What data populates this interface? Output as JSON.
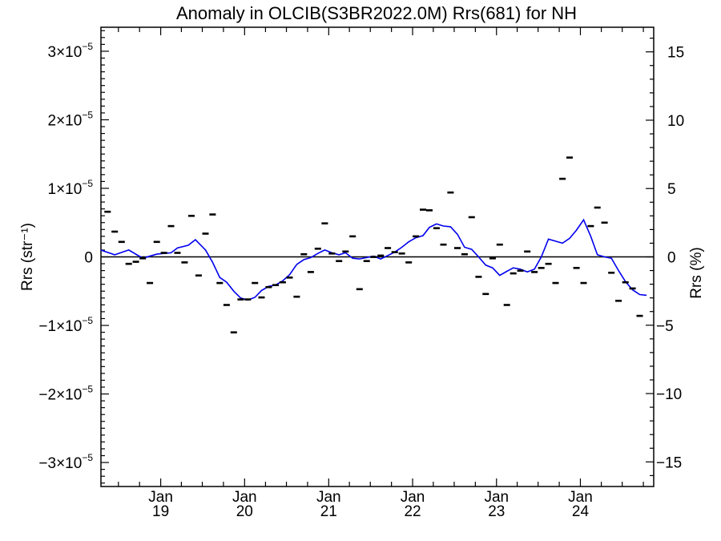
{
  "chart_data": {
    "type": "scatter",
    "title": "Anomaly in OLCIB(S3BR2022.0M) Rrs(681) for NH",
    "ylabel_left": "Rrs (str⁻¹)",
    "ylabel_right": "Rrs (%)",
    "x_range": [
      "2018-04-16",
      "2024-11-15"
    ],
    "ylim_left": [
      -3.35e-05,
      3.35e-05
    ],
    "ylim_right": [
      -16.8,
      16.8
    ],
    "left_ticks": [
      {
        "value": 3e-05,
        "mantissa": "3",
        "sign": ""
      },
      {
        "value": 2e-05,
        "mantissa": "2",
        "sign": ""
      },
      {
        "value": 1e-05,
        "mantissa": "1",
        "sign": ""
      },
      {
        "value": 0,
        "plain": "0"
      },
      {
        "value": -1e-05,
        "mantissa": "1",
        "sign": "−"
      },
      {
        "value": -2e-05,
        "mantissa": "2",
        "sign": "−"
      },
      {
        "value": -3e-05,
        "mantissa": "3",
        "sign": "−"
      }
    ],
    "tick_times": "×10",
    "tick_exp": "−5",
    "right_ticks": [
      {
        "value": 15,
        "label": "15"
      },
      {
        "value": 10,
        "label": "10"
      },
      {
        "value": 5,
        "label": "5"
      },
      {
        "value": 0,
        "label": "0"
      },
      {
        "value": -5,
        "label": "−5"
      },
      {
        "value": -10,
        "label": "−10"
      },
      {
        "value": -15,
        "label": "−15"
      }
    ],
    "x_ticks": [
      {
        "date": "2019-01-01",
        "month": "Jan",
        "year": "19"
      },
      {
        "date": "2020-01-01",
        "month": "Jan",
        "year": "20"
      },
      {
        "date": "2021-01-01",
        "month": "Jan",
        "year": "21"
      },
      {
        "date": "2022-01-01",
        "month": "Jan",
        "year": "22"
      },
      {
        "date": "2023-01-01",
        "month": "Jan",
        "year": "23"
      },
      {
        "date": "2024-01-01",
        "month": "Jan",
        "year": "24"
      }
    ],
    "series": [
      {
        "kind": "monthly_anomaly_markers",
        "color": "#000000",
        "points": [
          [
            "2018-05-15",
            6.6e-06
          ],
          [
            "2018-06-15",
            3.7e-06
          ],
          [
            "2018-07-15",
            2.2e-06
          ],
          [
            "2018-08-15",
            -1e-06
          ],
          [
            "2018-09-15",
            -7e-07
          ],
          [
            "2018-10-15",
            -2e-07
          ],
          [
            "2018-11-15",
            -3.8e-06
          ],
          [
            "2018-12-15",
            2.2e-06
          ],
          [
            "2019-01-15",
            6e-07
          ],
          [
            "2019-02-15",
            4.5e-06
          ],
          [
            "2019-03-15",
            6e-07
          ],
          [
            "2019-04-15",
            -8e-07
          ],
          [
            "2019-05-15",
            6e-06
          ],
          [
            "2019-06-15",
            -2.7e-06
          ],
          [
            "2019-07-15",
            3.4e-06
          ],
          [
            "2019-08-15",
            6.2e-06
          ],
          [
            "2019-09-15",
            -3.8e-06
          ],
          [
            "2019-10-15",
            -7e-06
          ],
          [
            "2019-11-15",
            -1.1e-05
          ],
          [
            "2019-12-15",
            -6.2e-06
          ],
          [
            "2020-01-15",
            -6.2e-06
          ],
          [
            "2020-02-15",
            -3.8e-06
          ],
          [
            "2020-03-15",
            -5.9e-06
          ],
          [
            "2020-04-15",
            -4.4e-06
          ],
          [
            "2020-05-15",
            -4.1e-06
          ],
          [
            "2020-06-15",
            -3.7e-06
          ],
          [
            "2020-07-15",
            -3e-06
          ],
          [
            "2020-08-15",
            -5.8e-06
          ],
          [
            "2020-09-15",
            4e-07
          ],
          [
            "2020-10-15",
            -2.2e-06
          ],
          [
            "2020-11-15",
            1.2e-06
          ],
          [
            "2020-12-15",
            4.9e-06
          ],
          [
            "2021-01-15",
            5e-07
          ],
          [
            "2021-02-15",
            -6e-07
          ],
          [
            "2021-03-15",
            8e-07
          ],
          [
            "2021-04-15",
            3e-06
          ],
          [
            "2021-05-15",
            -4.7e-06
          ],
          [
            "2021-06-15",
            -6e-07
          ],
          [
            "2021-07-15",
            0.0
          ],
          [
            "2021-08-15",
            2e-07
          ],
          [
            "2021-09-15",
            1.3e-06
          ],
          [
            "2021-10-15",
            7e-07
          ],
          [
            "2021-11-15",
            5e-07
          ],
          [
            "2021-12-15",
            -8e-07
          ],
          [
            "2022-01-15",
            3e-06
          ],
          [
            "2022-02-15",
            6.9e-06
          ],
          [
            "2022-03-15",
            6.8e-06
          ],
          [
            "2022-04-15",
            4.2e-06
          ],
          [
            "2022-05-15",
            1.8e-06
          ],
          [
            "2022-06-15",
            9.4e-06
          ],
          [
            "2022-07-15",
            1.3e-06
          ],
          [
            "2022-08-15",
            4e-07
          ],
          [
            "2022-09-15",
            5.8e-06
          ],
          [
            "2022-10-15",
            -2.9e-06
          ],
          [
            "2022-11-15",
            -5.4e-06
          ],
          [
            "2022-12-15",
            -2e-07
          ],
          [
            "2023-01-15",
            1.8e-06
          ],
          [
            "2023-02-15",
            -7e-06
          ],
          [
            "2023-03-15",
            -2.4e-06
          ],
          [
            "2023-04-15",
            -2e-06
          ],
          [
            "2023-05-15",
            8e-07
          ],
          [
            "2023-06-15",
            -2.2e-06
          ],
          [
            "2023-07-15",
            -1.6e-06
          ],
          [
            "2023-08-15",
            -1e-06
          ],
          [
            "2023-09-15",
            -3.8e-06
          ],
          [
            "2023-10-15",
            1.14e-05
          ],
          [
            "2023-11-15",
            1.45e-05
          ],
          [
            "2023-12-15",
            -1.6e-06
          ],
          [
            "2024-01-15",
            -3.8e-06
          ],
          [
            "2024-02-15",
            4.5e-06
          ],
          [
            "2024-03-15",
            7.2e-06
          ],
          [
            "2024-04-15",
            5e-06
          ],
          [
            "2024-05-15",
            -2.3e-06
          ],
          [
            "2024-06-15",
            -6.4e-06
          ],
          [
            "2024-07-15",
            -3.7e-06
          ],
          [
            "2024-08-15",
            -4.6e-06
          ],
          [
            "2024-09-15",
            -8.6e-06
          ]
        ]
      },
      {
        "kind": "smoothed_line",
        "color": "#0000ee",
        "points": [
          [
            "2018-04-15",
            1e-06
          ],
          [
            "2018-06-15",
            3e-07
          ],
          [
            "2018-08-15",
            1e-06
          ],
          [
            "2018-10-15",
            -2e-07
          ],
          [
            "2018-12-15",
            4e-07
          ],
          [
            "2019-02-15",
            6e-07
          ],
          [
            "2019-03-15",
            1.3e-06
          ],
          [
            "2019-05-01",
            1.7e-06
          ],
          [
            "2019-06-01",
            2.5e-06
          ],
          [
            "2019-07-15",
            1e-06
          ],
          [
            "2019-08-15",
            -8e-07
          ],
          [
            "2019-09-15",
            -3e-06
          ],
          [
            "2019-10-15",
            -3.7e-06
          ],
          [
            "2019-11-15",
            -5e-06
          ],
          [
            "2019-12-15",
            -6e-06
          ],
          [
            "2020-01-15",
            -6.3e-06
          ],
          [
            "2020-02-15",
            -5.9e-06
          ],
          [
            "2020-03-15",
            -4.9e-06
          ],
          [
            "2020-04-15",
            -4.3e-06
          ],
          [
            "2020-05-15",
            -4.1e-06
          ],
          [
            "2020-06-15",
            -3.5e-06
          ],
          [
            "2020-07-15",
            -2.6e-06
          ],
          [
            "2020-08-15",
            -1.1e-06
          ],
          [
            "2020-09-15",
            -4e-07
          ],
          [
            "2020-10-15",
            -1e-07
          ],
          [
            "2020-11-15",
            5e-07
          ],
          [
            "2020-12-15",
            1e-06
          ],
          [
            "2021-01-15",
            6e-07
          ],
          [
            "2021-02-15",
            3e-07
          ],
          [
            "2021-03-15",
            6e-07
          ],
          [
            "2021-04-15",
            -2e-07
          ],
          [
            "2021-05-15",
            -3e-07
          ],
          [
            "2021-06-15",
            -1e-07
          ],
          [
            "2021-07-15",
            1e-07
          ],
          [
            "2021-08-15",
            -3e-07
          ],
          [
            "2021-09-15",
            2e-07
          ],
          [
            "2021-10-15",
            7e-07
          ],
          [
            "2021-11-15",
            1.4e-06
          ],
          [
            "2021-12-15",
            2.2e-06
          ],
          [
            "2022-01-15",
            2.8e-06
          ],
          [
            "2022-02-15",
            3.1e-06
          ],
          [
            "2022-03-15",
            4.3e-06
          ],
          [
            "2022-04-15",
            4.8e-06
          ],
          [
            "2022-05-15",
            4.5e-06
          ],
          [
            "2022-06-15",
            4.4e-06
          ],
          [
            "2022-07-15",
            3.3e-06
          ],
          [
            "2022-08-15",
            1.4e-06
          ],
          [
            "2022-09-15",
            1.1e-06
          ],
          [
            "2022-10-15",
            0.0
          ],
          [
            "2022-11-15",
            -1.2e-06
          ],
          [
            "2022-12-15",
            -1.6e-06
          ],
          [
            "2023-01-15",
            -2.7e-06
          ],
          [
            "2023-02-15",
            -2.1e-06
          ],
          [
            "2023-03-15",
            -1.6e-06
          ],
          [
            "2023-04-15",
            -1.8e-06
          ],
          [
            "2023-05-15",
            -2.2e-06
          ],
          [
            "2023-06-15",
            -1.8e-06
          ],
          [
            "2023-07-15",
            0.0
          ],
          [
            "2023-08-15",
            2.6e-06
          ],
          [
            "2023-10-15",
            2e-06
          ],
          [
            "2023-11-15",
            2.7e-06
          ],
          [
            "2023-12-15",
            3.9e-06
          ],
          [
            "2024-01-15",
            5.4e-06
          ],
          [
            "2024-02-15",
            3e-06
          ],
          [
            "2024-03-15",
            3e-07
          ],
          [
            "2024-04-15",
            0.0
          ],
          [
            "2024-05-15",
            -2e-07
          ],
          [
            "2024-06-15",
            -2e-06
          ],
          [
            "2024-07-15",
            -3.6e-06
          ],
          [
            "2024-08-15",
            -4.8e-06
          ],
          [
            "2024-09-15",
            -5.5e-06
          ],
          [
            "2024-10-15",
            -5.6e-06
          ]
        ]
      }
    ],
    "zero_line": true,
    "grid": false,
    "legend": "none"
  }
}
